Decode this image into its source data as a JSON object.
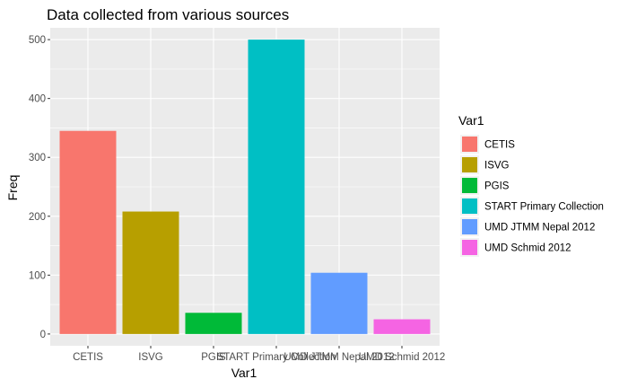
{
  "chart_data": {
    "type": "bar",
    "title": "Data collected from various sources",
    "xlabel": "Var1",
    "ylabel": "Freq",
    "categories": [
      "CETIS",
      "ISVG",
      "PGIS",
      "START Primary Collection",
      "UMD JTMM Nepal 2012",
      "UMD Schmid 2012"
    ],
    "values": [
      345,
      208,
      36,
      500,
      104,
      25
    ],
    "colors": [
      "#F8766D",
      "#B79F00",
      "#00BA38",
      "#00BFC4",
      "#619CFF",
      "#F564E3"
    ],
    "ylim": [
      -20,
      520
    ],
    "yticks": [
      0,
      100,
      200,
      300,
      400,
      500
    ],
    "grid": true,
    "legend": {
      "title": "Var1",
      "placement": "right",
      "entries": [
        "CETIS",
        "ISVG",
        "PGIS",
        "START Primary Collection",
        "UMD JTMM Nepal 2012",
        "UMD Schmid 2012"
      ]
    },
    "panel_background": "#EBEBEB",
    "grid_color": "#FFFFFF"
  }
}
